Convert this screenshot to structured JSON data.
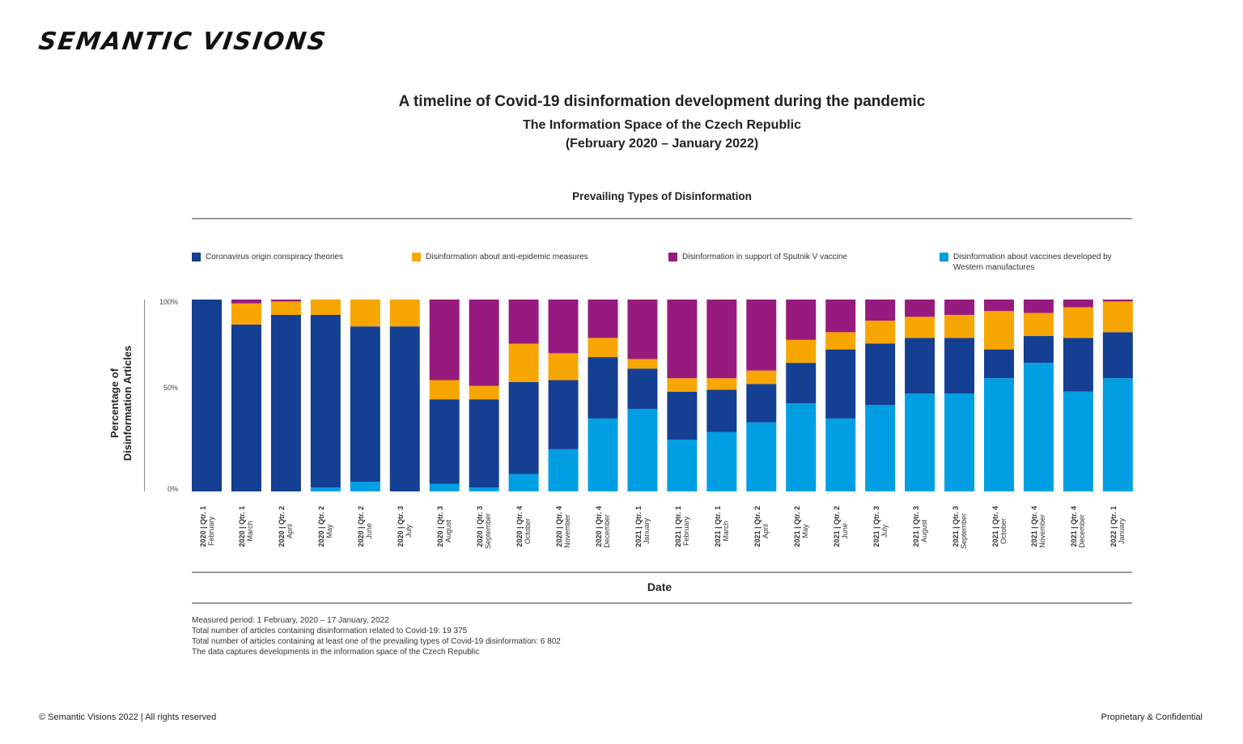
{
  "brand": {
    "logo_text": "SEMANTIC VISIONS"
  },
  "header": {
    "title": "A timeline of Covid-19 disinformation development during the pandemic",
    "subtitle": "The Information Space of the Czech Republic",
    "period": "(February 2020 – January 2022)"
  },
  "chart_data": {
    "type": "bar",
    "stacked": true,
    "title": "Prevailing Types of Disinformation",
    "xlabel": "Date",
    "ylabel": "Percentage of Disinformation Articles",
    "ylim": [
      0,
      100
    ],
    "yticks": [
      "0%",
      "50%",
      "100%"
    ],
    "legend_position": "top",
    "categories": [
      {
        "period": "2020 | Qtr. 1",
        "month": "February"
      },
      {
        "period": "2020 | Qtr. 1",
        "month": "March"
      },
      {
        "period": "2020 | Qtr. 2",
        "month": "April"
      },
      {
        "period": "2020 | Qtr. 2",
        "month": "May"
      },
      {
        "period": "2020 | Qtr. 2",
        "month": "June"
      },
      {
        "period": "2020 | Qtr. 3",
        "month": "July"
      },
      {
        "period": "2020 | Qtr. 3",
        "month": "August"
      },
      {
        "period": "2020 | Qtr. 3",
        "month": "September"
      },
      {
        "period": "2020 | Qtr. 4",
        "month": "October"
      },
      {
        "period": "2020 | Qtr. 4",
        "month": "November"
      },
      {
        "period": "2020 | Qtr. 4",
        "month": "December"
      },
      {
        "period": "2021 | Qtr. 1",
        "month": "January"
      },
      {
        "period": "2021 | Qtr. 1",
        "month": "February"
      },
      {
        "period": "2021 | Qtr. 1",
        "month": "March"
      },
      {
        "period": "2021 | Qtr. 2",
        "month": "April"
      },
      {
        "period": "2021 | Qtr. 2",
        "month": "May"
      },
      {
        "period": "2021 | Qtr. 2",
        "month": "June"
      },
      {
        "period": "2021 | Qtr. 3",
        "month": "July"
      },
      {
        "period": "2021 | Qtr. 3",
        "month": "August"
      },
      {
        "period": "2021 | Qtr. 3",
        "month": "September"
      },
      {
        "period": "2021 | Qtr. 4",
        "month": "October"
      },
      {
        "period": "2021 | Qtr. 4",
        "month": "November"
      },
      {
        "period": "2021 | Qtr. 4",
        "month": "December"
      },
      {
        "period": "2022 | Qtr. 1",
        "month": "January"
      }
    ],
    "series": [
      {
        "name": "Disinformation about vaccines developed by Western manufactures",
        "color": "#009fe3",
        "values": [
          0,
          0,
          0,
          2,
          5,
          0,
          4,
          2,
          9,
          22,
          38,
          43,
          27,
          31,
          36,
          46,
          38,
          45,
          51,
          51,
          59,
          67,
          52,
          59
        ]
      },
      {
        "name": "Coronavirus origin conspiracy theories",
        "color": "#143f92",
        "values": [
          100,
          87,
          92,
          90,
          81,
          86,
          44,
          46,
          48,
          36,
          32,
          21,
          25,
          22,
          20,
          21,
          36,
          32,
          29,
          29,
          15,
          14,
          28,
          24
        ]
      },
      {
        "name": "Disinformation about anti-epidemic measures",
        "color": "#f7a600",
        "values": [
          0,
          11,
          7,
          8,
          14,
          14,
          10,
          7,
          20,
          14,
          10,
          5,
          7,
          6,
          7,
          12,
          9,
          12,
          11,
          12,
          20,
          12,
          16,
          16
        ]
      },
      {
        "name": "Disinformation in support of Sputnik V vaccine",
        "color": "#971b7f",
        "values": [
          0,
          2,
          1,
          0,
          0,
          0,
          42,
          45,
          23,
          28,
          20,
          31,
          41,
          41,
          37,
          21,
          17,
          11,
          9,
          8,
          6,
          7,
          4,
          1
        ]
      }
    ],
    "legend": [
      {
        "label": "Coronavirus origin conspiracy theories",
        "color": "#143f92"
      },
      {
        "label": "Disinformation about anti-epidemic measures",
        "color": "#f7a600"
      },
      {
        "label": "Disinformation in support of Sputnik V vaccine",
        "color": "#971b7f"
      },
      {
        "label": "Disinformation about vaccines developed by Western manufactures",
        "color": "#009fe3"
      }
    ]
  },
  "notes": [
    "Measured period: 1 February, 2020 – 17 January, 2022",
    "Total number of articles containing disinformation related to Covid-19: 19 375",
    "Total number of articles containing at least one of the prevailing types of Covid-19 disinformation: 6 802",
    "The data captures developments in the information space of the Czech Republic"
  ],
  "footer": {
    "copyright": "© Semantic Visions 2022 | All rights reserved",
    "confidential": "Proprietary & Confidential"
  }
}
